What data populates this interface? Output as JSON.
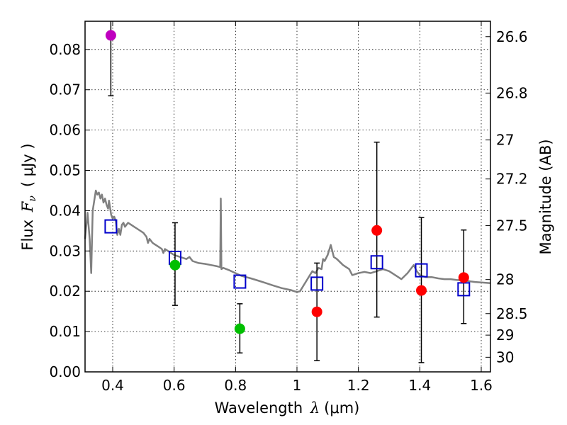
{
  "chart_data": {
    "type": "scatter",
    "xlabel": "Wavelength  λ (μm)",
    "xlabel_parts": {
      "prefix": "Wavelength ",
      "symbol": "λ",
      "unit": "(μm)"
    },
    "ylabel": "Flux  Fν  ( μJy )",
    "ylabel_parts": {
      "prefix": "Flux ",
      "symbol": "F",
      "subscript": "ν",
      "unit": "( μJy )"
    },
    "ylabel_right": "Magnitude (AB)",
    "xlim": [
      0.31,
      1.63
    ],
    "ylim": [
      0.0,
      0.087
    ],
    "grid": true,
    "x_ticks": [
      {
        "v": 0.4,
        "label": "0.4"
      },
      {
        "v": 0.6,
        "label": "0.6"
      },
      {
        "v": 0.8,
        "label": "0.8"
      },
      {
        "v": 1.0,
        "label": "1"
      },
      {
        "v": 1.2,
        "label": "1.2"
      },
      {
        "v": 1.4,
        "label": "1.4"
      },
      {
        "v": 1.6,
        "label": "1.6"
      }
    ],
    "y_ticks": [
      {
        "v": 0.0,
        "label": "0.00"
      },
      {
        "v": 0.01,
        "label": "0.01"
      },
      {
        "v": 0.02,
        "label": "0.02"
      },
      {
        "v": 0.03,
        "label": "0.03"
      },
      {
        "v": 0.04,
        "label": "0.04"
      },
      {
        "v": 0.05,
        "label": "0.05"
      },
      {
        "v": 0.06,
        "label": "0.06"
      },
      {
        "v": 0.07,
        "label": "0.07"
      },
      {
        "v": 0.08,
        "label": "0.08"
      }
    ],
    "right_ticks": [
      {
        "mag": 26.6,
        "label": "26.6"
      },
      {
        "mag": 26.8,
        "label": "26.8"
      },
      {
        "mag": 27.0,
        "label": "27"
      },
      {
        "mag": 27.2,
        "label": "27.2"
      },
      {
        "mag": 27.5,
        "label": "27.5"
      },
      {
        "mag": 28.0,
        "label": "28"
      },
      {
        "mag": 28.5,
        "label": "28.5"
      },
      {
        "mag": 29.0,
        "label": "29"
      },
      {
        "mag": 30.0,
        "label": "30"
      }
    ],
    "observed_points": [
      {
        "x": 0.394,
        "y": 0.0835,
        "yerr_low": 0.0685,
        "yerr_high": 0.0875,
        "color": "#bf00bf"
      },
      {
        "x": 0.603,
        "y": 0.0265,
        "yerr_low": 0.0165,
        "yerr_high": 0.037,
        "color": "#00bf00"
      },
      {
        "x": 0.814,
        "y": 0.0107,
        "yerr_low": 0.0047,
        "yerr_high": 0.0169,
        "color": "#00bf00"
      },
      {
        "x": 1.065,
        "y": 0.0149,
        "yerr_low": 0.0028,
        "yerr_high": 0.027,
        "color": "#ff0000"
      },
      {
        "x": 1.26,
        "y": 0.0351,
        "yerr_low": 0.0136,
        "yerr_high": 0.057,
        "color": "#ff0000"
      },
      {
        "x": 1.405,
        "y": 0.0202,
        "yerr_low": 0.0023,
        "yerr_high": 0.0383,
        "color": "#ff0000"
      },
      {
        "x": 1.543,
        "y": 0.0234,
        "yerr_low": 0.012,
        "yerr_high": 0.0352,
        "color": "#ff0000"
      }
    ],
    "model_points": [
      {
        "x": 0.394,
        "y": 0.0361
      },
      {
        "x": 0.603,
        "y": 0.0283
      },
      {
        "x": 0.814,
        "y": 0.0224
      },
      {
        "x": 1.065,
        "y": 0.0219
      },
      {
        "x": 1.26,
        "y": 0.0272
      },
      {
        "x": 1.405,
        "y": 0.0252
      },
      {
        "x": 1.543,
        "y": 0.0205
      }
    ],
    "model_color": "#0000cc",
    "sed_color": "#808080",
    "sed": [
      [
        0.31,
        0.033
      ],
      [
        0.318,
        0.0395
      ],
      [
        0.325,
        0.033
      ],
      [
        0.33,
        0.0245
      ],
      [
        0.335,
        0.04
      ],
      [
        0.34,
        0.0425
      ],
      [
        0.345,
        0.045
      ],
      [
        0.35,
        0.044
      ],
      [
        0.355,
        0.0445
      ],
      [
        0.36,
        0.043
      ],
      [
        0.365,
        0.044
      ],
      [
        0.37,
        0.042
      ],
      [
        0.375,
        0.043
      ],
      [
        0.38,
        0.0415
      ],
      [
        0.385,
        0.0405
      ],
      [
        0.388,
        0.0425
      ],
      [
        0.395,
        0.039
      ],
      [
        0.4,
        0.038
      ],
      [
        0.405,
        0.0385
      ],
      [
        0.41,
        0.0375
      ],
      [
        0.415,
        0.034
      ],
      [
        0.42,
        0.0355
      ],
      [
        0.425,
        0.034
      ],
      [
        0.43,
        0.0365
      ],
      [
        0.435,
        0.037
      ],
      [
        0.44,
        0.036
      ],
      [
        0.45,
        0.037
      ],
      [
        0.46,
        0.0365
      ],
      [
        0.47,
        0.036
      ],
      [
        0.48,
        0.0355
      ],
      [
        0.49,
        0.035
      ],
      [
        0.5,
        0.0345
      ],
      [
        0.51,
        0.0335
      ],
      [
        0.515,
        0.032
      ],
      [
        0.52,
        0.033
      ],
      [
        0.53,
        0.032
      ],
      [
        0.54,
        0.0315
      ],
      [
        0.55,
        0.031
      ],
      [
        0.56,
        0.0305
      ],
      [
        0.565,
        0.0295
      ],
      [
        0.57,
        0.0305
      ],
      [
        0.58,
        0.03
      ],
      [
        0.59,
        0.0295
      ],
      [
        0.6,
        0.029
      ],
      [
        0.62,
        0.0285
      ],
      [
        0.64,
        0.028
      ],
      [
        0.65,
        0.0285
      ],
      [
        0.66,
        0.0275
      ],
      [
        0.68,
        0.027
      ],
      [
        0.7,
        0.0268
      ],
      [
        0.72,
        0.0265
      ],
      [
        0.74,
        0.0262
      ],
      [
        0.75,
        0.026
      ],
      [
        0.752,
        0.043
      ],
      [
        0.754,
        0.0255
      ],
      [
        0.76,
        0.0258
      ],
      [
        0.78,
        0.0252
      ],
      [
        0.8,
        0.0245
      ],
      [
        0.82,
        0.0238
      ],
      [
        0.85,
        0.0232
      ],
      [
        0.88,
        0.0225
      ],
      [
        0.9,
        0.022
      ],
      [
        0.92,
        0.0215
      ],
      [
        0.95,
        0.0208
      ],
      [
        0.98,
        0.0203
      ],
      [
        1.0,
        0.0198
      ],
      [
        1.01,
        0.02
      ],
      [
        1.03,
        0.0225
      ],
      [
        1.05,
        0.025
      ],
      [
        1.06,
        0.0245
      ],
      [
        1.07,
        0.0258
      ],
      [
        1.08,
        0.0255
      ],
      [
        1.085,
        0.028
      ],
      [
        1.09,
        0.0275
      ],
      [
        1.1,
        0.029
      ],
      [
        1.11,
        0.0315
      ],
      [
        1.12,
        0.0285
      ],
      [
        1.13,
        0.028
      ],
      [
        1.15,
        0.0265
      ],
      [
        1.17,
        0.0255
      ],
      [
        1.18,
        0.024
      ],
      [
        1.2,
        0.0245
      ],
      [
        1.22,
        0.0248
      ],
      [
        1.24,
        0.0245
      ],
      [
        1.26,
        0.025
      ],
      [
        1.28,
        0.0255
      ],
      [
        1.3,
        0.025
      ],
      [
        1.32,
        0.024
      ],
      [
        1.34,
        0.023
      ],
      [
        1.36,
        0.0245
      ],
      [
        1.38,
        0.0265
      ],
      [
        1.39,
        0.025
      ],
      [
        1.4,
        0.024
      ],
      [
        1.42,
        0.0235
      ],
      [
        1.44,
        0.0235
      ],
      [
        1.46,
        0.0232
      ],
      [
        1.48,
        0.023
      ],
      [
        1.5,
        0.023
      ],
      [
        1.52,
        0.0228
      ],
      [
        1.54,
        0.0227
      ],
      [
        1.56,
        0.0225
      ],
      [
        1.58,
        0.0223
      ],
      [
        1.6,
        0.0222
      ],
      [
        1.63,
        0.022
      ]
    ]
  }
}
